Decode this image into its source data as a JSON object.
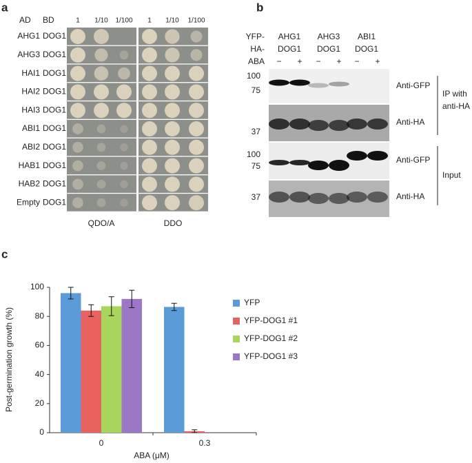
{
  "panel_a": {
    "label": "a",
    "ad_header": "AD",
    "bd_header": "BD",
    "dilutions": [
      "1",
      "1/10",
      "1/100",
      "1",
      "1/10",
      "1/100"
    ],
    "rows": [
      {
        "ad": "AHG1",
        "bd": "DOG1"
      },
      {
        "ad": "AHG3",
        "bd": "DOG1"
      },
      {
        "ad": "HAI1",
        "bd": "DOG1"
      },
      {
        "ad": "HAI2",
        "bd": "DOG1"
      },
      {
        "ad": "HAI3",
        "bd": "DOG1"
      },
      {
        "ad": "ABI1",
        "bd": "DOG1"
      },
      {
        "ad": "ABI2",
        "bd": "DOG1"
      },
      {
        "ad": "HAB1",
        "bd": "DOG1"
      },
      {
        "ad": "HAB2",
        "bd": "DOG1"
      },
      {
        "ad": "Empty",
        "bd": "DOG1"
      }
    ],
    "media": [
      "QDO/A",
      "DDO"
    ]
  },
  "panel_b": {
    "label": "b",
    "row_labels": [
      "YFP-",
      "HA-",
      "ABA"
    ],
    "groups": [
      [
        "AHG1",
        "DOG1"
      ],
      [
        "AHG3",
        "DOG1"
      ],
      [
        "ABI1",
        "DOG1"
      ]
    ],
    "aba": [
      "−",
      "+",
      "−",
      "+",
      "−",
      "+"
    ],
    "markers": [
      "100",
      "75",
      "37",
      "100",
      "75",
      "37"
    ],
    "antibodies": [
      "Anti-GFP",
      "Anti-HA",
      "Anti-GFP",
      "Anti-HA"
    ],
    "ip_label": [
      "IP with",
      "anti-HA"
    ],
    "input_label": "Input"
  },
  "panel_c": {
    "label": "c"
  },
  "chart_data": {
    "type": "bar",
    "y_label": "Post-germination growth (%)",
    "x_label": "ABA (μM)",
    "categories": [
      "0",
      "0.3"
    ],
    "series": [
      {
        "name": "YFP",
        "color": "#5b9bd8",
        "values": [
          96,
          86.5
        ],
        "errors": [
          4,
          2.5
        ]
      },
      {
        "name": "YFP-DOG1 #1",
        "color": "#e8625f",
        "values": [
          84,
          1
        ],
        "errors": [
          4,
          1
        ]
      },
      {
        "name": "YFP-DOG1 #2",
        "color": "#a8d65c",
        "values": [
          87,
          0
        ],
        "errors": [
          6.5,
          0
        ]
      },
      {
        "name": "YFP-DOG1 #3",
        "color": "#9b77c6",
        "values": [
          92,
          0
        ],
        "errors": [
          6,
          0
        ]
      }
    ],
    "ylim": [
      0,
      100
    ],
    "yticks": [
      0,
      20,
      40,
      60,
      80,
      100
    ],
    "grid": false,
    "legend": "right"
  }
}
